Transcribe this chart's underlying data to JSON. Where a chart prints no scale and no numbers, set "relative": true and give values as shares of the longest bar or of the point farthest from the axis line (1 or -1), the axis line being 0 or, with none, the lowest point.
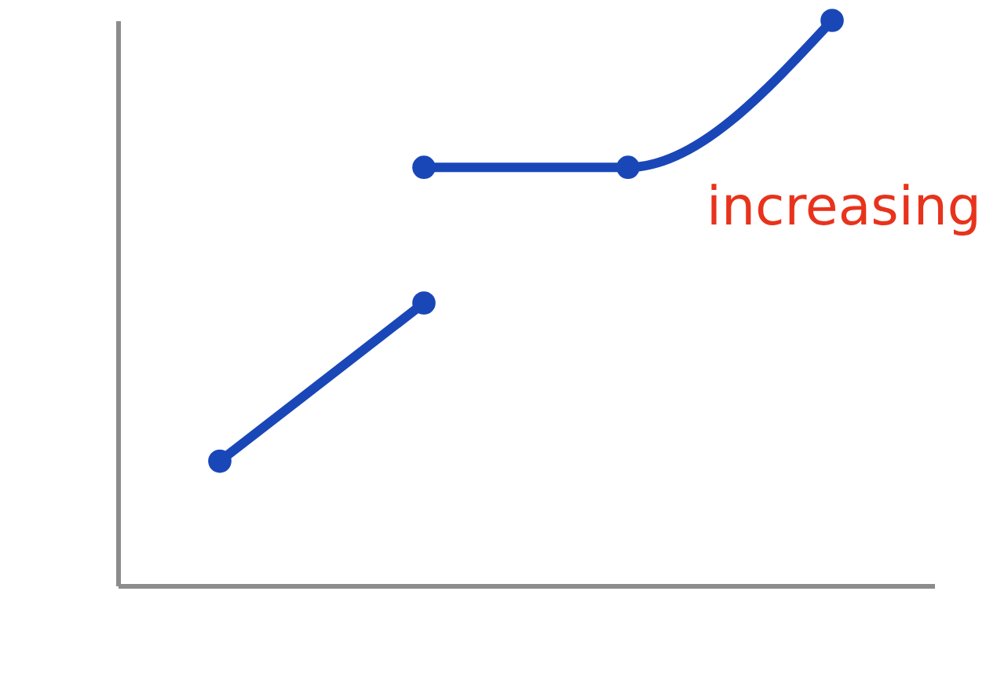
{
  "chart_data": {
    "type": "line",
    "relative": true,
    "categories": [
      null,
      null,
      null,
      null
    ],
    "series": [
      {
        "color": "#1a47b8",
        "values": [
          0.22,
          0.5,
          null,
          null
        ]
      },
      {
        "color": "#1a47b8",
        "values": [
          null,
          0.74,
          0.74,
          1
        ]
      }
    ],
    "marker": "circle",
    "line_style": "solid",
    "annotations": [
      "increasing"
    ]
  }
}
